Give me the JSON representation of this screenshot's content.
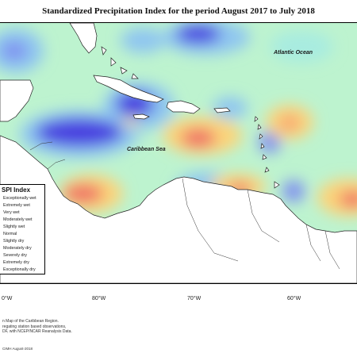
{
  "title": "Standardized Precipitation Index for the period August 2017 to July 2018",
  "labels": {
    "atlantic": "Atlantic Ocean",
    "caribbean": "Caribbean Sea"
  },
  "legend": {
    "title": "SPI Index",
    "items": [
      "Exceptionally wet",
      "Extremely wet",
      "Very wet",
      "Moderately wet",
      "Slightly wet",
      "Normal",
      "Slightly dry",
      "Moderately dry",
      "Severely dry",
      "Extremely dry",
      "Exceptionally dry"
    ]
  },
  "longitudes": [
    "0°W",
    "80°W",
    "70°W",
    "60°W"
  ],
  "credits": {
    "line1": "n Map of the Caribbean Region.",
    "line2": "regating station based observations,",
    "line3": "DF, with NCEP/NCAR Reanalysis Data."
  },
  "footer": "CIMH August-2018",
  "colors": {
    "exceptionally_wet": "#3b2fd0",
    "very_wet": "#7f8ff0",
    "moderately_wet": "#8fc6f0",
    "slightly_wet": "#a8ece0",
    "normal": "#bdf3cf",
    "slightly_dry": "#f5f19a",
    "moderately_dry": "#fbd47a",
    "severely_dry": "#f6a074",
    "extremely_dry": "#ef6f67",
    "land": "#ffffff"
  }
}
